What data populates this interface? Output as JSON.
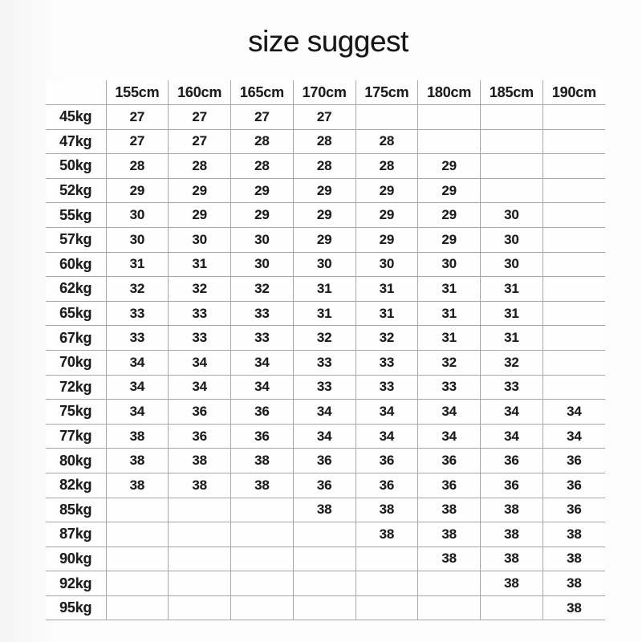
{
  "title": "size suggest",
  "chart_data": {
    "type": "table",
    "title": "size suggest",
    "row_header_unit": "weight (kg)",
    "col_header_unit": "height (cm)",
    "corner_label": "",
    "columns": [
      "155cm",
      "160cm",
      "165cm",
      "170cm",
      "175cm",
      "180cm",
      "185cm",
      "190cm"
    ],
    "rows": [
      {
        "weight": "45kg",
        "sizes": [
          "27",
          "27",
          "27",
          "27",
          "",
          "",
          "",
          ""
        ]
      },
      {
        "weight": "47kg",
        "sizes": [
          "27",
          "27",
          "28",
          "28",
          "28",
          "",
          "",
          ""
        ]
      },
      {
        "weight": "50kg",
        "sizes": [
          "28",
          "28",
          "28",
          "28",
          "28",
          "29",
          "",
          ""
        ]
      },
      {
        "weight": "52kg",
        "sizes": [
          "29",
          "29",
          "29",
          "29",
          "29",
          "29",
          "",
          ""
        ]
      },
      {
        "weight": "55kg",
        "sizes": [
          "30",
          "29",
          "29",
          "29",
          "29",
          "29",
          "30",
          ""
        ]
      },
      {
        "weight": "57kg",
        "sizes": [
          "30",
          "30",
          "30",
          "29",
          "29",
          "29",
          "30",
          ""
        ]
      },
      {
        "weight": "60kg",
        "sizes": [
          "31",
          "31",
          "30",
          "30",
          "30",
          "30",
          "30",
          ""
        ]
      },
      {
        "weight": "62kg",
        "sizes": [
          "32",
          "32",
          "32",
          "31",
          "31",
          "31",
          "31",
          ""
        ]
      },
      {
        "weight": "65kg",
        "sizes": [
          "33",
          "33",
          "33",
          "31",
          "31",
          "31",
          "31",
          ""
        ]
      },
      {
        "weight": "67kg",
        "sizes": [
          "33",
          "33",
          "33",
          "32",
          "32",
          "31",
          "31",
          ""
        ]
      },
      {
        "weight": "70kg",
        "sizes": [
          "34",
          "34",
          "34",
          "33",
          "33",
          "32",
          "32",
          ""
        ]
      },
      {
        "weight": "72kg",
        "sizes": [
          "34",
          "34",
          "34",
          "33",
          "33",
          "33",
          "33",
          ""
        ]
      },
      {
        "weight": "75kg",
        "sizes": [
          "34",
          "36",
          "36",
          "34",
          "34",
          "34",
          "34",
          "34"
        ]
      },
      {
        "weight": "77kg",
        "sizes": [
          "38",
          "36",
          "36",
          "34",
          "34",
          "34",
          "34",
          "34"
        ]
      },
      {
        "weight": "80kg",
        "sizes": [
          "38",
          "38",
          "38",
          "36",
          "36",
          "36",
          "36",
          "36"
        ]
      },
      {
        "weight": "82kg",
        "sizes": [
          "38",
          "38",
          "38",
          "36",
          "36",
          "36",
          "36",
          "36"
        ]
      },
      {
        "weight": "85kg",
        "sizes": [
          "",
          "",
          "",
          "38",
          "38",
          "38",
          "38",
          "36"
        ]
      },
      {
        "weight": "87kg",
        "sizes": [
          "",
          "",
          "",
          "",
          "38",
          "38",
          "38",
          "38"
        ]
      },
      {
        "weight": "90kg",
        "sizes": [
          "",
          "",
          "",
          "",
          "",
          "38",
          "38",
          "38"
        ]
      },
      {
        "weight": "92kg",
        "sizes": [
          "",
          "",
          "",
          "",
          "",
          "",
          "38",
          "38"
        ]
      },
      {
        "weight": "95kg",
        "sizes": [
          "",
          "",
          "",
          "",
          "",
          "",
          "",
          "38"
        ]
      }
    ]
  }
}
